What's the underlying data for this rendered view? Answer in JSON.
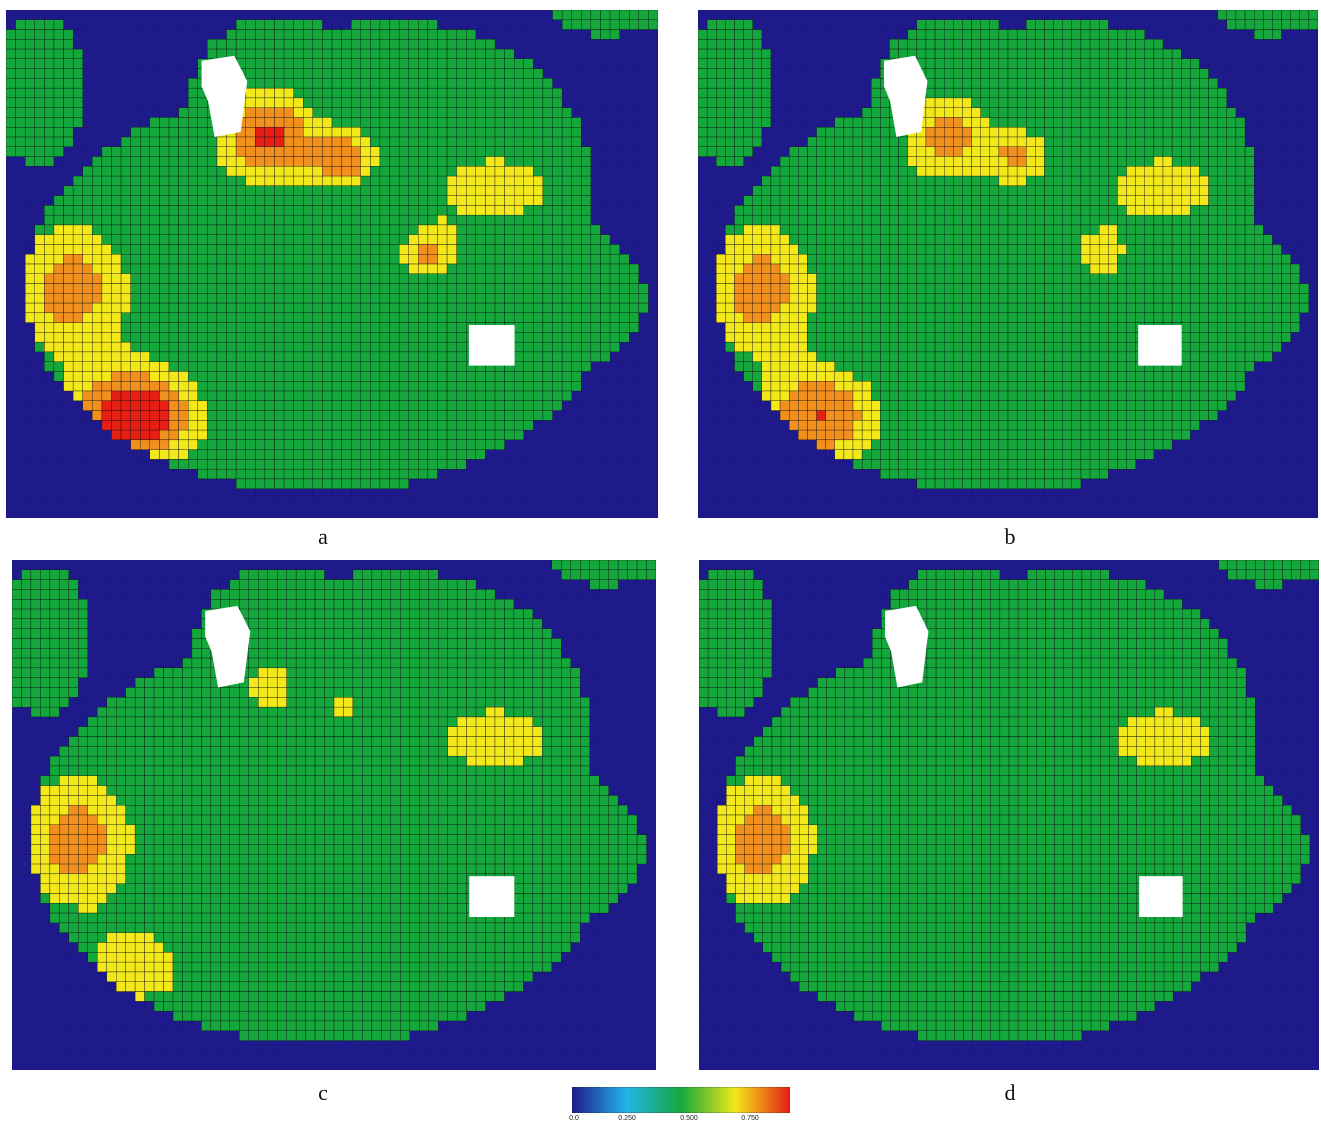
{
  "colors": {
    "low": "#1f1a8c",
    "cyan": "#22b4e8",
    "green": "#14a83c",
    "yellow": "#f2e81a",
    "orange": "#f2901e",
    "red": "#e61e14",
    "grid": "#101010",
    "void": "#ffffff"
  },
  "legend": {
    "ticks": [
      "0.0",
      "0.250",
      "0.500",
      "0.750"
    ]
  },
  "panels": [
    {
      "label": "a",
      "labels_shown": [
        "2759",
        "2763",
        "2765",
        "48",
        "2766",
        "2767",
        "2768",
        "2769",
        "2772",
        "2773",
        "2774",
        "2770",
        "2771",
        "54",
        "53",
        "10611",
        "10622",
        "10614",
        "2838",
        "10612",
        "4155",
        "912",
        "10617",
        "10616",
        "10620",
        "4144",
        "2791",
        "2793",
        "2782",
        "2800",
        "2802",
        "2815",
        "37",
        "38",
        "39",
        "40",
        "41",
        "42",
        "43",
        "44",
        "45",
        "46",
        "47",
        "49",
        "50",
        "51",
        "52",
        "55",
        "56",
        "57",
        "58",
        "59",
        "60",
        "61",
        "62",
        "63",
        "64",
        "65",
        "666"
      ]
    },
    {
      "label": "b",
      "labels_shown": [
        "2759",
        "2763",
        "2765",
        "48",
        "2766",
        "2767",
        "2768",
        "2769",
        "2772",
        "2773",
        "2774",
        "2770",
        "2771",
        "54",
        "53",
        "10611",
        "10622",
        "10614",
        "2838",
        "10612",
        "4155",
        "912",
        "10617",
        "10616",
        "10620",
        "4144",
        "2791",
        "2793",
        "2782",
        "2800",
        "2802",
        "2815",
        "37",
        "38",
        "39",
        "40",
        "41",
        "42",
        "43",
        "44",
        "45",
        "46",
        "47",
        "49",
        "50",
        "51",
        "52",
        "55",
        "56",
        "57",
        "58",
        "59",
        "60",
        "61",
        "62",
        "63",
        "64",
        "65",
        "666"
      ]
    },
    {
      "label": "c",
      "labels_shown": [
        "2759",
        "2763",
        "2765",
        "48",
        "2766",
        "2767",
        "2768",
        "2769",
        "2772",
        "2773",
        "2774",
        "2770",
        "2771",
        "54",
        "53",
        "10611",
        "10622",
        "10614",
        "2838",
        "10612",
        "4155",
        "912",
        "10617",
        "10616",
        "10620",
        "4144",
        "2791",
        "2793",
        "2782",
        "2800",
        "2802",
        "2815",
        "37",
        "38",
        "39",
        "40",
        "41",
        "42",
        "43",
        "44",
        "45",
        "46",
        "47",
        "49",
        "50",
        "51",
        "52",
        "55",
        "56",
        "57",
        "58",
        "59",
        "60",
        "61",
        "62",
        "63",
        "64",
        "65",
        "666"
      ]
    },
    {
      "label": "d",
      "labels_shown": [
        "2759",
        "2763",
        "2765",
        "48",
        "2766",
        "2767",
        "2768",
        "2769",
        "2772",
        "2773",
        "2774",
        "2770",
        "2771",
        "54",
        "53",
        "10611",
        "10622",
        "10614",
        "2838",
        "10612",
        "4155",
        "912",
        "10617",
        "10616",
        "10620",
        "4144",
        "2791",
        "2793",
        "2782",
        "2800",
        "2802",
        "2815",
        "37",
        "38",
        "39",
        "40",
        "41",
        "42",
        "43",
        "44",
        "45",
        "46",
        "47",
        "49",
        "50",
        "51",
        "52",
        "55",
        "56",
        "57",
        "58",
        "59",
        "60",
        "61",
        "62",
        "63",
        "64",
        "65",
        "666"
      ]
    }
  ]
}
